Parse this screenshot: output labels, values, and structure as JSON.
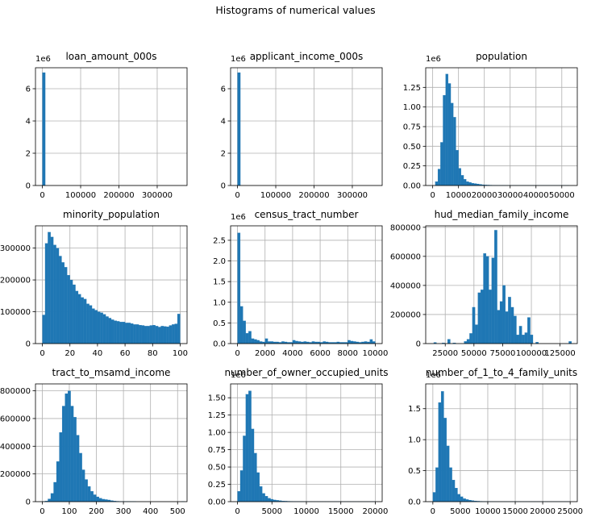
{
  "figure": {
    "suptitle": "Histograms of numerical values"
  },
  "colors": {
    "bar": "#1f77b4",
    "grid": "#b0b0b0",
    "axis": "#000000",
    "background": "#ffffff"
  },
  "chart_data": [
    {
      "type": "bar",
      "title": "loan_amount_000s",
      "offset_text": "1e6",
      "xlim": [
        -18000,
        378000
      ],
      "ylim": [
        0,
        7.3
      ],
      "xticks": [
        0,
        100000,
        200000,
        300000
      ],
      "yticks": [
        0,
        2,
        4,
        6
      ],
      "bin_start": 0,
      "bin_width": 7500,
      "values": [
        7.0
      ]
    },
    {
      "type": "bar",
      "title": "applicant_income_000s",
      "offset_text": "1e6",
      "xlim": [
        -18000,
        378000
      ],
      "ylim": [
        0,
        7.3
      ],
      "xticks": [
        0,
        100000,
        200000,
        300000
      ],
      "yticks": [
        0,
        2,
        4,
        6
      ],
      "bin_start": 0,
      "bin_width": 7500,
      "values": [
        7.0
      ]
    },
    {
      "type": "bar",
      "title": "population",
      "offset_text": "1e6",
      "xlim": [
        -2700,
        56000
      ],
      "ylim": [
        0,
        1.5
      ],
      "xticks": [
        0,
        10000,
        20000,
        30000,
        40000,
        50000
      ],
      "yticks": [
        0.0,
        0.25,
        0.5,
        0.75,
        1.0,
        1.25
      ],
      "bin_start": 0,
      "bin_width": 1000,
      "values": [
        0.0,
        0.05,
        0.21,
        0.55,
        1.15,
        1.42,
        1.3,
        1.05,
        0.87,
        0.45,
        0.22,
        0.13,
        0.08,
        0.05,
        0.04,
        0.03,
        0.025,
        0.02,
        0.015,
        0.01,
        0.008,
        0.006,
        0.005,
        0.004,
        0.003,
        0.002,
        0.002,
        0.002,
        0.001,
        0.001,
        0.001,
        0.001,
        0.001,
        0.001,
        0.001,
        0.001,
        0.001,
        0.001,
        0.001,
        0.001,
        0.001,
        0.001,
        0.001,
        0.001,
        0.001,
        0.001,
        0.001,
        0.001,
        0.001,
        0.001,
        0.001,
        0.001,
        0.001
      ]
    },
    {
      "type": "bar",
      "title": "minority_population",
      "xlim": [
        -5,
        105
      ],
      "ylim": [
        0,
        370000
      ],
      "xticks": [
        0,
        20,
        40,
        60,
        80,
        100
      ],
      "yticks": [
        0,
        100000,
        200000,
        300000
      ],
      "bin_start": 0,
      "bin_width": 2,
      "values": [
        90000,
        315000,
        350000,
        335000,
        310000,
        300000,
        275000,
        255000,
        240000,
        215000,
        200000,
        185000,
        165000,
        155000,
        145000,
        140000,
        125000,
        120000,
        110000,
        105000,
        100000,
        97000,
        92000,
        85000,
        80000,
        75000,
        72000,
        70000,
        68000,
        68000,
        65000,
        65000,
        63000,
        60000,
        60000,
        58000,
        57000,
        55000,
        55000,
        57000,
        58000,
        55000,
        52000,
        55000,
        54000,
        53000,
        57000,
        60000,
        62000,
        93000
      ]
    },
    {
      "type": "bar",
      "title": "census_tract_number",
      "offset_text": "1e6",
      "xlim": [
        -500,
        10500
      ],
      "ylim": [
        0,
        2.85
      ],
      "xticks": [
        0,
        2000,
        4000,
        6000,
        8000,
        10000
      ],
      "yticks": [
        0.0,
        0.5,
        1.0,
        1.5,
        2.0,
        2.5
      ],
      "bin_start": 0,
      "bin_width": 200,
      "values": [
        2.68,
        0.9,
        0.55,
        0.25,
        0.3,
        0.12,
        0.1,
        0.08,
        0.05,
        0.04,
        0.12,
        0.05,
        0.05,
        0.04,
        0.04,
        0.03,
        0.05,
        0.04,
        0.03,
        0.03,
        0.08,
        0.06,
        0.05,
        0.04,
        0.05,
        0.04,
        0.03,
        0.05,
        0.04,
        0.04,
        0.03,
        0.05,
        0.04,
        0.03,
        0.03,
        0.03,
        0.04,
        0.03,
        0.03,
        0.03,
        0.08,
        0.06,
        0.05,
        0.04,
        0.03,
        0.04,
        0.05,
        0.04,
        0.1,
        0.05
      ]
    },
    {
      "type": "bar",
      "title": "hud_median_family_income",
      "xlim": [
        8000,
        140000
      ],
      "ylim": [
        0,
        810000
      ],
      "xticks": [
        25000,
        50000,
        75000,
        100000,
        125000
      ],
      "yticks": [
        0,
        200000,
        400000,
        600000,
        800000
      ],
      "bin_start": 15000,
      "bin_width": 2400,
      "values": [
        8000,
        0,
        0,
        5000,
        0,
        30000,
        0,
        5000,
        0,
        0,
        0,
        15000,
        30000,
        70000,
        250000,
        130000,
        350000,
        370000,
        620000,
        600000,
        370000,
        590000,
        780000,
        230000,
        290000,
        400000,
        220000,
        320000,
        250000,
        190000,
        60000,
        120000,
        60000,
        75000,
        180000,
        60000,
        0,
        10000,
        0,
        0,
        0,
        0,
        0,
        0,
        0,
        0,
        0,
        0,
        0,
        15000
      ]
    },
    {
      "type": "bar",
      "title": "tract_to_msamd_income",
      "xlim": [
        -25,
        535
      ],
      "ylim": [
        0,
        850000
      ],
      "xticks": [
        0,
        100,
        200,
        300,
        400,
        500
      ],
      "yticks": [
        0,
        200000,
        400000,
        600000,
        800000
      ],
      "bin_start": 0,
      "bin_width": 10.5,
      "values": [
        2000,
        5000,
        20000,
        60000,
        140000,
        290000,
        500000,
        690000,
        780000,
        800000,
        690000,
        610000,
        480000,
        350000,
        230000,
        160000,
        110000,
        75000,
        50000,
        35000,
        25000,
        18000,
        15000,
        12000,
        8000,
        5000,
        3000,
        2000,
        2000,
        1000,
        1000,
        1000,
        1000,
        0,
        0,
        0,
        0,
        0,
        0,
        0,
        0,
        0,
        0,
        0,
        0,
        0,
        0,
        0,
        0,
        1000
      ]
    },
    {
      "type": "bar",
      "title": "number_of_owner_occupied_units",
      "offset_text": "1e6",
      "xlim": [
        -1000,
        21000
      ],
      "ylim": [
        0,
        1.7
      ],
      "xticks": [
        0,
        5000,
        10000,
        15000,
        20000
      ],
      "yticks": [
        0.0,
        0.25,
        0.5,
        0.75,
        1.0,
        1.25,
        1.5
      ],
      "bin_start": 0,
      "bin_width": 400,
      "values": [
        0.15,
        0.45,
        0.95,
        1.55,
        1.6,
        1.05,
        0.7,
        0.42,
        0.22,
        0.12,
        0.08,
        0.05,
        0.035,
        0.025,
        0.02,
        0.015,
        0.01,
        0.008,
        0.006,
        0.005,
        0.004,
        0.003,
        0.002,
        0.002,
        0.001,
        0.001,
        0.001,
        0.001,
        0.001,
        0.001,
        0.001,
        0.001,
        0.001,
        0.001,
        0.001,
        0.001,
        0.001,
        0.001,
        0.001,
        0.001,
        0.001,
        0.001,
        0.001,
        0.001,
        0.001,
        0.001,
        0.001,
        0.001,
        0.001,
        0.001
      ]
    },
    {
      "type": "bar",
      "title": "number_of_1_to_4_family_units",
      "offset_text": "1e6",
      "xlim": [
        -1300,
        26300
      ],
      "ylim": [
        0,
        1.9
      ],
      "xticks": [
        0,
        5000,
        10000,
        15000,
        20000,
        25000
      ],
      "yticks": [
        0.0,
        0.5,
        1.0,
        1.5
      ],
      "bin_start": 0,
      "bin_width": 500,
      "values": [
        0.15,
        0.55,
        1.6,
        1.78,
        1.35,
        0.9,
        0.55,
        0.35,
        0.22,
        0.12,
        0.08,
        0.05,
        0.035,
        0.025,
        0.018,
        0.012,
        0.008,
        0.006,
        0.004,
        0.003,
        0.002,
        0.002,
        0.001,
        0.001,
        0.001,
        0.001,
        0.001,
        0.001,
        0.001,
        0.001,
        0.001,
        0.001,
        0.001,
        0.001,
        0.001,
        0.001,
        0.001,
        0.001,
        0.001,
        0.001,
        0.001,
        0.001,
        0.001,
        0.001,
        0.001,
        0.001,
        0.001,
        0.001,
        0.001,
        0.001
      ]
    }
  ]
}
